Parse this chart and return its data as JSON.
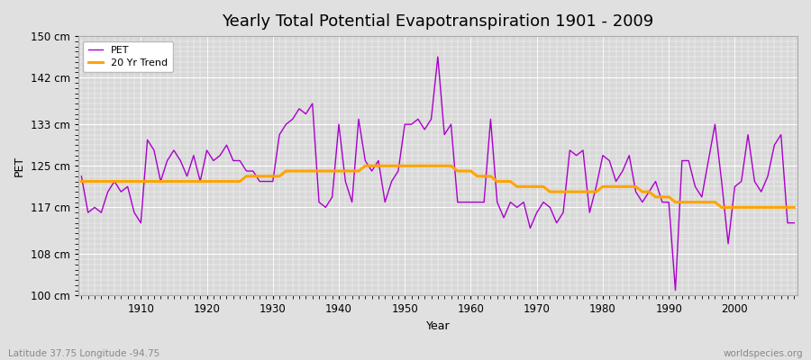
{
  "title": "Yearly Total Potential Evapotranspiration 1901 - 2009",
  "ylabel": "PET",
  "xlabel": "Year",
  "subtitle_left": "Latitude 37.75 Longitude -94.75",
  "subtitle_right": "worldspecies.org",
  "ylim": [
    100,
    150
  ],
  "yticks": [
    100,
    108,
    117,
    125,
    133,
    142,
    150
  ],
  "ytick_labels": [
    "100 cm",
    "108 cm",
    "117 cm",
    "125 cm",
    "133 cm",
    "142 cm",
    "150 cm"
  ],
  "years": [
    1901,
    1902,
    1903,
    1904,
    1905,
    1906,
    1907,
    1908,
    1909,
    1910,
    1911,
    1912,
    1913,
    1914,
    1915,
    1916,
    1917,
    1918,
    1919,
    1920,
    1921,
    1922,
    1923,
    1924,
    1925,
    1926,
    1927,
    1928,
    1929,
    1930,
    1931,
    1932,
    1933,
    1934,
    1935,
    1936,
    1937,
    1938,
    1939,
    1940,
    1941,
    1942,
    1943,
    1944,
    1945,
    1946,
    1947,
    1948,
    1949,
    1950,
    1951,
    1952,
    1953,
    1954,
    1955,
    1956,
    1957,
    1958,
    1959,
    1960,
    1961,
    1962,
    1963,
    1964,
    1965,
    1966,
    1967,
    1968,
    1969,
    1970,
    1971,
    1972,
    1973,
    1974,
    1975,
    1976,
    1977,
    1978,
    1979,
    1980,
    1981,
    1982,
    1983,
    1984,
    1985,
    1986,
    1987,
    1988,
    1989,
    1990,
    1991,
    1992,
    1993,
    1994,
    1995,
    1996,
    1997,
    1998,
    1999,
    2000,
    2001,
    2002,
    2003,
    2004,
    2005,
    2006,
    2007,
    2008,
    2009
  ],
  "pet": [
    123,
    116,
    117,
    116,
    120,
    122,
    120,
    121,
    116,
    114,
    130,
    128,
    122,
    126,
    128,
    126,
    123,
    127,
    122,
    128,
    126,
    127,
    129,
    126,
    126,
    124,
    124,
    122,
    122,
    122,
    131,
    133,
    134,
    136,
    135,
    137,
    118,
    117,
    119,
    133,
    122,
    118,
    134,
    126,
    124,
    126,
    118,
    122,
    124,
    133,
    133,
    134,
    132,
    134,
    146,
    131,
    133,
    118,
    118,
    118,
    118,
    118,
    134,
    118,
    115,
    118,
    117,
    118,
    113,
    116,
    118,
    117,
    114,
    116,
    128,
    127,
    128,
    116,
    121,
    127,
    126,
    122,
    124,
    127,
    120,
    118,
    120,
    122,
    118,
    118,
    101,
    126,
    126,
    121,
    119,
    126,
    133,
    122,
    110,
    121,
    122,
    131,
    122,
    120,
    123,
    129,
    131,
    114,
    114
  ],
  "trend": [
    122,
    122,
    122,
    122,
    122,
    122,
    122,
    122,
    122,
    122,
    122,
    122,
    122,
    122,
    122,
    122,
    122,
    122,
    122,
    122,
    122,
    122,
    122,
    122,
    122,
    123,
    123,
    123,
    123,
    123,
    123,
    124,
    124,
    124,
    124,
    124,
    124,
    124,
    124,
    124,
    124,
    124,
    124,
    125,
    125,
    125,
    125,
    125,
    125,
    125,
    125,
    125,
    125,
    125,
    125,
    125,
    125,
    124,
    124,
    124,
    123,
    123,
    123,
    122,
    122,
    122,
    121,
    121,
    121,
    121,
    121,
    120,
    120,
    120,
    120,
    120,
    120,
    120,
    120,
    121,
    121,
    121,
    121,
    121,
    121,
    120,
    120,
    119,
    119,
    119,
    118,
    118,
    118,
    118,
    118,
    118,
    118,
    117,
    117,
    117,
    117,
    117,
    117,
    117,
    117,
    117,
    117,
    117,
    117
  ],
  "pet_color": "#AA00CC",
  "trend_color": "#FFA500",
  "bg_color": "#E0E0E0",
  "plot_bg_color": "#D8D8D8",
  "grid_color": "#FFFFFF",
  "legend_frame_color": "#FFFFFF",
  "title_fontsize": 13,
  "label_fontsize": 9,
  "tick_fontsize": 8.5
}
